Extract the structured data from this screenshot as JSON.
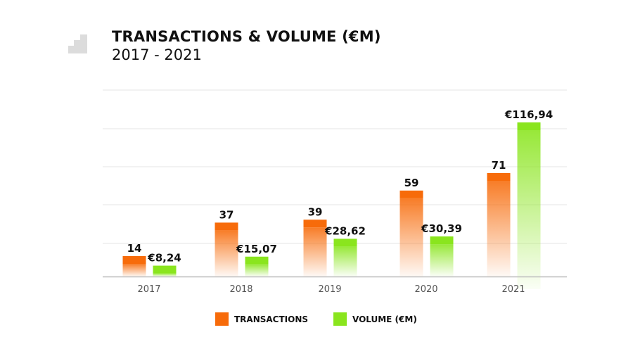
{
  "header": {
    "title": "TRANSACTIONS & VOLUME (€M)",
    "subtitle": "2017 - 2021"
  },
  "colors": {
    "transactions": "#f76b0a",
    "volume": "#8ae51e",
    "grid": "#e6e6e6",
    "axis": "#bdbdbd",
    "logo": "#dcdcdc"
  },
  "icons": {
    "logo": "stairs-logo-icon"
  },
  "chart_data": {
    "type": "bar",
    "title": "TRANSACTIONS & VOLUME (€M)",
    "subtitle": "2017 - 2021",
    "categories": [
      "2017",
      "2018",
      "2019",
      "2020",
      "2021"
    ],
    "series": [
      {
        "name": "TRANSACTIONS",
        "values": [
          14,
          37,
          39,
          59,
          71
        ],
        "labels": [
          "14",
          "37",
          "39",
          "59",
          "71"
        ]
      },
      {
        "name": "VOLUME (€M)",
        "values": [
          8.24,
          15.07,
          28.62,
          30.39,
          116.94
        ],
        "labels": [
          "€8,24",
          "€15,07",
          "€28,62",
          "€30,39",
          "€116,94"
        ]
      }
    ],
    "grid": true,
    "legend": "bottom-center"
  }
}
